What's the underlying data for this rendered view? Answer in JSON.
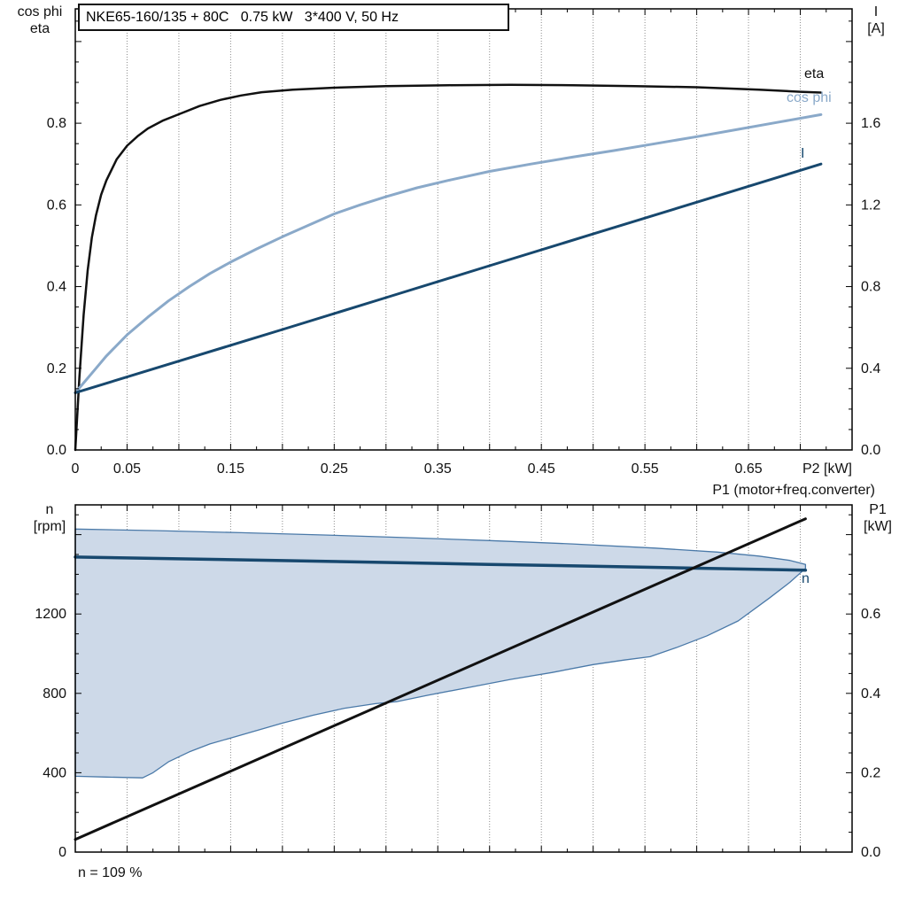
{
  "title_box": "NKE65-160/135 + 80C   0.75 kW   3*400 V, 50 Hz",
  "colors": {
    "eta": "#111111",
    "cos_phi": "#8aa9c9",
    "current": "#17486e",
    "speed": "#17486e",
    "p1_line": "#111111",
    "band_fill": "#cdd9e8",
    "band_edge": "#4a79a8",
    "grid": "#8c8c8c",
    "frame": "#000000"
  },
  "labels": {
    "top_left_axis": [
      "cos phi",
      "eta"
    ],
    "top_right_axis": [
      "I",
      "[A]"
    ],
    "bottom_left_axis": [
      "n",
      "[rpm]"
    ],
    "bottom_right_axis": [
      "P1",
      "[kW]"
    ],
    "p1_caption": "P1 (motor+freq.converter)",
    "annotation": "n = 109 %"
  },
  "chart_data": [
    {
      "type": "line",
      "title": "NKE65-160/135 + 80C   0.75 kW   3*400 V, 50 Hz",
      "xlabel": "P2 [kW]",
      "ylabel_left": "cos phi / eta",
      "ylabel_right": "I [A]",
      "xlim": [
        0,
        0.75
      ],
      "ylim_left": [
        0,
        1.08
      ],
      "ylim_right": [
        0,
        2.16
      ],
      "grid_x": [
        0.05,
        0.1,
        0.15,
        0.2,
        0.25,
        0.3,
        0.35,
        0.4,
        0.45,
        0.5,
        0.55,
        0.6,
        0.65,
        0.7
      ],
      "ticks": {
        "x_minor": 0.025,
        "x_major": 0.05,
        "yl_minor": 0.05,
        "yl_major": 0.2,
        "yr_minor": 0.1,
        "yr_major": 0.4
      },
      "x_tick_labels": [
        {
          "v": 0,
          "label": "0"
        },
        {
          "v": 0.05,
          "label": "0.05"
        },
        {
          "v": 0.15,
          "label": "0.15"
        },
        {
          "v": 0.25,
          "label": "0.25"
        },
        {
          "v": 0.35,
          "label": "0.35"
        },
        {
          "v": 0.45,
          "label": "0.45"
        },
        {
          "v": 0.55,
          "label": "0.55"
        },
        {
          "v": 0.65,
          "label": "0.65"
        }
      ],
      "y_tick_labels_left": [
        {
          "v": 0.0,
          "label": "0.0"
        },
        {
          "v": 0.2,
          "label": "0.2"
        },
        {
          "v": 0.4,
          "label": "0.4"
        },
        {
          "v": 0.6,
          "label": "0.6"
        },
        {
          "v": 0.8,
          "label": "0.8"
        }
      ],
      "y_tick_labels_right": [
        {
          "v": 0.0,
          "label": "0.0"
        },
        {
          "v": 0.4,
          "label": "0.4"
        },
        {
          "v": 0.8,
          "label": "0.8"
        },
        {
          "v": 1.2,
          "label": "1.2"
        },
        {
          "v": 1.6,
          "label": "1.6"
        }
      ],
      "series": [
        {
          "name": "eta",
          "axis": "left",
          "color": "#111111",
          "width": 2.5,
          "points": [
            [
              0,
              0
            ],
            [
              0.004,
              0.18
            ],
            [
              0.008,
              0.33
            ],
            [
              0.012,
              0.44
            ],
            [
              0.016,
              0.52
            ],
            [
              0.02,
              0.575
            ],
            [
              0.025,
              0.625
            ],
            [
              0.03,
              0.66
            ],
            [
              0.04,
              0.712
            ],
            [
              0.05,
              0.745
            ],
            [
              0.06,
              0.768
            ],
            [
              0.07,
              0.787
            ],
            [
              0.085,
              0.807
            ],
            [
              0.1,
              0.822
            ],
            [
              0.12,
              0.842
            ],
            [
              0.14,
              0.857
            ],
            [
              0.16,
              0.868
            ],
            [
              0.18,
              0.876
            ],
            [
              0.21,
              0.882
            ],
            [
              0.25,
              0.887
            ],
            [
              0.3,
              0.891
            ],
            [
              0.36,
              0.893
            ],
            [
              0.42,
              0.894
            ],
            [
              0.48,
              0.893
            ],
            [
              0.54,
              0.891
            ],
            [
              0.6,
              0.888
            ],
            [
              0.66,
              0.882
            ],
            [
              0.7,
              0.877
            ],
            [
              0.72,
              0.875
            ]
          ]
        },
        {
          "name": "cos phi",
          "axis": "left",
          "color": "#8aa9c9",
          "width": 3,
          "points": [
            [
              0,
              0.14
            ],
            [
              0.01,
              0.17
            ],
            [
              0.02,
              0.2
            ],
            [
              0.03,
              0.23
            ],
            [
              0.05,
              0.282
            ],
            [
              0.07,
              0.325
            ],
            [
              0.09,
              0.365
            ],
            [
              0.11,
              0.4
            ],
            [
              0.13,
              0.432
            ],
            [
              0.15,
              0.46
            ],
            [
              0.175,
              0.492
            ],
            [
              0.2,
              0.522
            ],
            [
              0.225,
              0.55
            ],
            [
              0.25,
              0.578
            ],
            [
              0.275,
              0.6
            ],
            [
              0.3,
              0.62
            ],
            [
              0.33,
              0.642
            ],
            [
              0.36,
              0.66
            ],
            [
              0.4,
              0.682
            ],
            [
              0.44,
              0.7
            ],
            [
              0.48,
              0.717
            ],
            [
              0.52,
              0.733
            ],
            [
              0.56,
              0.75
            ],
            [
              0.6,
              0.767
            ],
            [
              0.64,
              0.785
            ],
            [
              0.68,
              0.803
            ],
            [
              0.72,
              0.821
            ]
          ]
        },
        {
          "name": "I",
          "axis": "right",
          "color": "#17486e",
          "width": 3,
          "points": [
            [
              0,
              0.28
            ],
            [
              0.1,
              0.435
            ],
            [
              0.2,
              0.59
            ],
            [
              0.3,
              0.746
            ],
            [
              0.4,
              0.902
            ],
            [
              0.5,
              1.058
            ],
            [
              0.6,
              1.213
            ],
            [
              0.72,
              1.4
            ]
          ]
        }
      ]
    },
    {
      "type": "line+area",
      "xlabel": "",
      "ylabel_left": "n [rpm]",
      "ylabel_right": "P1 [kW]",
      "caption_right": "P1 (motor+freq.converter)",
      "annotation": "n = 109 %",
      "xlim": [
        0,
        0.75
      ],
      "ylim_left": [
        0,
        1750
      ],
      "ylim_right": [
        0,
        0.875
      ],
      "grid_x": [
        0.05,
        0.1,
        0.15,
        0.2,
        0.25,
        0.3,
        0.35,
        0.4,
        0.45,
        0.5,
        0.55,
        0.6,
        0.65,
        0.7
      ],
      "ticks": {
        "x_minor": 0.025,
        "x_major": 0.05,
        "yl_minor": 100,
        "yl_major": 400,
        "yr_minor": 0.05,
        "yr_major": 0.2
      },
      "y_tick_labels_left": [
        {
          "v": 0,
          "label": "0"
        },
        {
          "v": 400,
          "label": "400"
        },
        {
          "v": 800,
          "label": "800"
        },
        {
          "v": 1200,
          "label": "1200"
        }
      ],
      "y_tick_labels_right": [
        {
          "v": 0.0,
          "label": "0.0"
        },
        {
          "v": 0.2,
          "label": "0.2"
        },
        {
          "v": 0.4,
          "label": "0.4"
        },
        {
          "v": 0.6,
          "label": "0.6"
        }
      ],
      "band": {
        "fill": "#cdd9e8",
        "edge": "#4a79a8",
        "upper": [
          [
            0,
            1628
          ],
          [
            0.08,
            1620
          ],
          [
            0.16,
            1610
          ],
          [
            0.24,
            1598
          ],
          [
            0.32,
            1585
          ],
          [
            0.4,
            1570
          ],
          [
            0.48,
            1553
          ],
          [
            0.56,
            1532
          ],
          [
            0.62,
            1512
          ],
          [
            0.66,
            1492
          ],
          [
            0.69,
            1470
          ],
          [
            0.705,
            1450
          ]
        ],
        "lower": [
          [
            0,
            382
          ],
          [
            0.03,
            378
          ],
          [
            0.065,
            374
          ],
          [
            0.075,
            400
          ],
          [
            0.09,
            455
          ],
          [
            0.11,
            505
          ],
          [
            0.13,
            545
          ],
          [
            0.15,
            575
          ],
          [
            0.17,
            605
          ],
          [
            0.2,
            650
          ],
          [
            0.23,
            690
          ],
          [
            0.26,
            725
          ],
          [
            0.29,
            748
          ],
          [
            0.31,
            758
          ],
          [
            0.34,
            790
          ],
          [
            0.38,
            830
          ],
          [
            0.42,
            870
          ],
          [
            0.46,
            905
          ],
          [
            0.5,
            945
          ],
          [
            0.53,
            968
          ],
          [
            0.555,
            985
          ],
          [
            0.58,
            1030
          ],
          [
            0.61,
            1090
          ],
          [
            0.64,
            1165
          ],
          [
            0.67,
            1280
          ],
          [
            0.69,
            1360
          ],
          [
            0.705,
            1430
          ]
        ]
      },
      "series": [
        {
          "name": "n",
          "axis": "left",
          "color": "#17486e",
          "width": 3.5,
          "points": [
            [
              0,
              1487
            ],
            [
              0.1,
              1478
            ],
            [
              0.2,
              1469
            ],
            [
              0.3,
              1460
            ],
            [
              0.4,
              1450
            ],
            [
              0.5,
              1441
            ],
            [
              0.6,
              1431
            ],
            [
              0.705,
              1421
            ]
          ]
        },
        {
          "name": "P1",
          "axis": "right",
          "color": "#111111",
          "width": 3,
          "points": [
            [
              0,
              0.032
            ],
            [
              0.705,
              0.84
            ]
          ]
        }
      ]
    }
  ]
}
